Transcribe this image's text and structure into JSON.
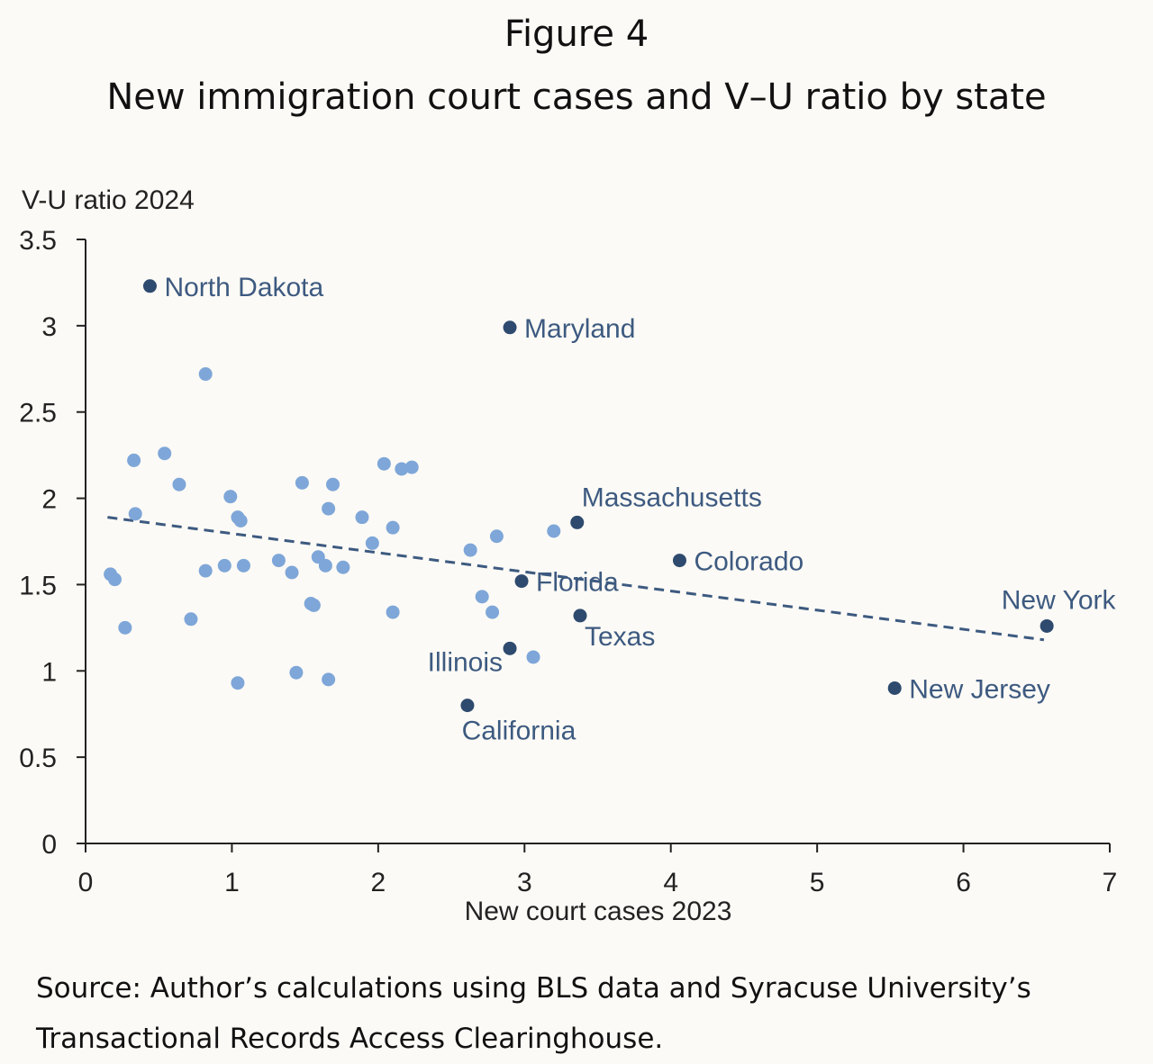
{
  "figure": {
    "title": "Figure 4",
    "subtitle": "New immigration court cases and V–U ratio by state",
    "source_line1": "Source: Author’s calculations using BLS data and Syracuse University’s",
    "source_line2": "Transactional Records Access Clearinghouse."
  },
  "chart_data": {
    "type": "scatter",
    "title": "New immigration court cases and V–U ratio by state",
    "xlabel": "New court cases 2023",
    "ylabel": "V-U ratio 2024",
    "xlim": [
      0,
      7
    ],
    "ylim": [
      0,
      3.5
    ],
    "xticks": [
      0,
      1,
      2,
      3,
      4,
      5,
      6,
      7
    ],
    "yticks": [
      0,
      0.5,
      1,
      1.5,
      2,
      2.5,
      3,
      3.5
    ],
    "ytick_labels": [
      "0",
      "0.5",
      "1",
      "1.5",
      "2",
      "2.5",
      "3",
      "3.5"
    ],
    "grid": false,
    "colors": {
      "highlight": "#2e4a6e",
      "other": "#7ea6d8",
      "trend": "#3d5a80",
      "label": "#3d5a80"
    },
    "trendline": {
      "style": "dashed",
      "x": [
        0.15,
        6.55
      ],
      "y": [
        1.89,
        1.18
      ]
    },
    "highlighted": [
      {
        "label": "North Dakota",
        "x": 0.44,
        "y": 3.23,
        "label_side": "right"
      },
      {
        "label": "Maryland",
        "x": 2.9,
        "y": 2.99,
        "label_side": "right"
      },
      {
        "label": "Massachusetts",
        "x": 3.36,
        "y": 1.86,
        "label_side": "above-right"
      },
      {
        "label": "Colorado",
        "x": 4.06,
        "y": 1.64,
        "label_side": "right"
      },
      {
        "label": "Florida",
        "x": 2.98,
        "y": 1.52,
        "label_side": "right"
      },
      {
        "label": "Texas",
        "x": 3.38,
        "y": 1.32,
        "label_side": "below-right"
      },
      {
        "label": "Illinois",
        "x": 2.9,
        "y": 1.13,
        "label_side": "left"
      },
      {
        "label": "California",
        "x": 2.61,
        "y": 0.8,
        "label_side": "below"
      },
      {
        "label": "New Jersey",
        "x": 5.53,
        "y": 0.9,
        "label_side": "right"
      },
      {
        "label": "New York",
        "x": 6.57,
        "y": 1.26,
        "label_side": "above"
      }
    ],
    "others": [
      {
        "x": 0.82,
        "y": 2.72
      },
      {
        "x": 0.54,
        "y": 2.26
      },
      {
        "x": 0.33,
        "y": 2.22
      },
      {
        "x": 0.64,
        "y": 2.08
      },
      {
        "x": 0.34,
        "y": 1.91
      },
      {
        "x": 0.99,
        "y": 2.01
      },
      {
        "x": 1.04,
        "y": 1.89
      },
      {
        "x": 1.06,
        "y": 1.87
      },
      {
        "x": 1.48,
        "y": 2.09
      },
      {
        "x": 1.69,
        "y": 2.08
      },
      {
        "x": 1.66,
        "y": 1.94
      },
      {
        "x": 1.89,
        "y": 1.89
      },
      {
        "x": 2.04,
        "y": 2.2
      },
      {
        "x": 2.16,
        "y": 2.17
      },
      {
        "x": 2.23,
        "y": 2.18
      },
      {
        "x": 2.1,
        "y": 1.83
      },
      {
        "x": 1.96,
        "y": 1.74
      },
      {
        "x": 2.81,
        "y": 1.78
      },
      {
        "x": 3.2,
        "y": 1.81
      },
      {
        "x": 2.63,
        "y": 1.7
      },
      {
        "x": 0.17,
        "y": 1.56
      },
      {
        "x": 0.2,
        "y": 1.53
      },
      {
        "x": 0.82,
        "y": 1.58
      },
      {
        "x": 0.95,
        "y": 1.61
      },
      {
        "x": 1.08,
        "y": 1.61
      },
      {
        "x": 1.32,
        "y": 1.64
      },
      {
        "x": 1.41,
        "y": 1.57
      },
      {
        "x": 1.59,
        "y": 1.66
      },
      {
        "x": 1.64,
        "y": 1.61
      },
      {
        "x": 1.76,
        "y": 1.6
      },
      {
        "x": 1.54,
        "y": 1.39
      },
      {
        "x": 1.56,
        "y": 1.38
      },
      {
        "x": 2.1,
        "y": 1.34
      },
      {
        "x": 2.71,
        "y": 1.43
      },
      {
        "x": 2.78,
        "y": 1.34
      },
      {
        "x": 0.72,
        "y": 1.3
      },
      {
        "x": 0.27,
        "y": 1.25
      },
      {
        "x": 3.06,
        "y": 1.08
      },
      {
        "x": 1.44,
        "y": 0.99
      },
      {
        "x": 1.66,
        "y": 0.95
      },
      {
        "x": 1.04,
        "y": 0.93
      }
    ]
  }
}
